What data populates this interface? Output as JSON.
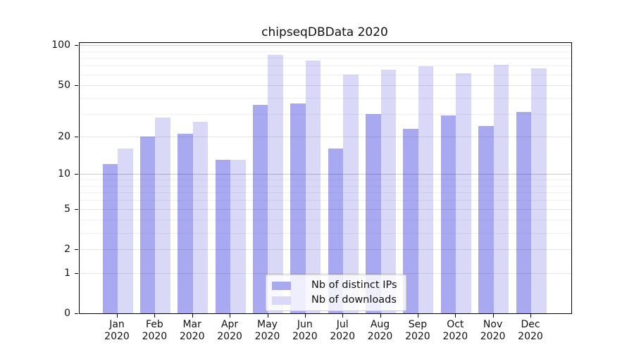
{
  "chart_data": {
    "type": "bar",
    "title": "chipseqDBData 2020",
    "x_categories": [
      "Jan",
      "Feb",
      "Mar",
      "Apr",
      "May",
      "Jun",
      "Jul",
      "Aug",
      "Sep",
      "Oct",
      "Nov",
      "Dec"
    ],
    "x_year_label": "2020",
    "series": [
      {
        "name": "Nb of distinct IPs",
        "color": "#a9a9f1",
        "values": [
          12,
          20,
          21,
          13,
          35,
          36,
          16,
          30,
          23,
          29,
          24,
          31
        ]
      },
      {
        "name": "Nb of downloads",
        "color": "#d9d9f7",
        "values": [
          16,
          28,
          26,
          13,
          84,
          77,
          60,
          65,
          69,
          61,
          71,
          67
        ]
      }
    ],
    "yscale": "log1p",
    "ylim": [
      0,
      105
    ],
    "y_tick_labels": [
      "0",
      "1",
      "2",
      "5",
      "10",
      "20",
      "50",
      "100"
    ],
    "y_major_ticks": [
      0,
      1,
      2,
      5,
      10,
      20,
      50,
      100
    ],
    "y_minor_gridlines": [
      3,
      4,
      6,
      7,
      8,
      9,
      30,
      40,
      60,
      70,
      80,
      90
    ],
    "emphasized_gridlines": [
      10,
      100
    ],
    "grid": true,
    "legend_position": "lower-center-inside",
    "axis_color": "#000000",
    "background": "#ffffff"
  }
}
